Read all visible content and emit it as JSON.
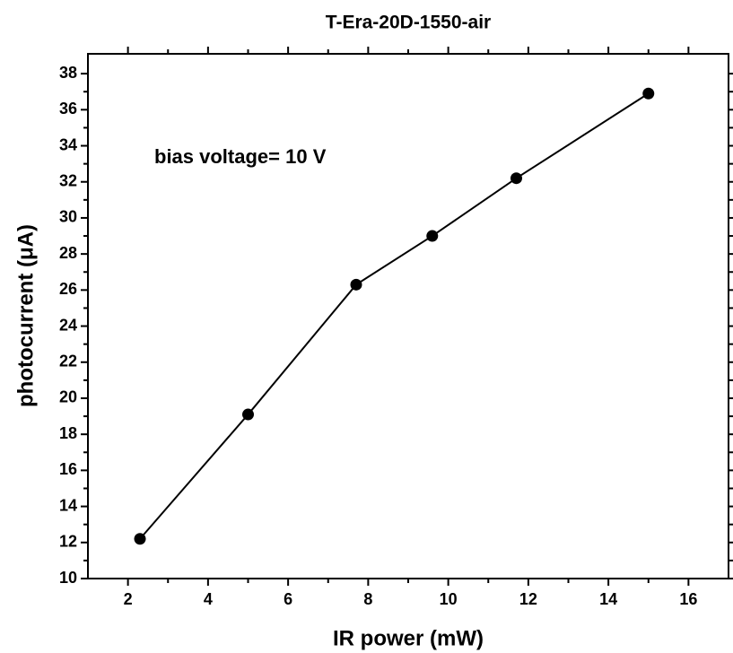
{
  "chart_data": {
    "type": "line",
    "title": "T-Era-20D-1550-air",
    "x_label": "IR power (mW)",
    "y_label": "photocurrent (μA)",
    "annotation": "bias voltage= 10 V",
    "x": [
      2.3,
      5.0,
      7.7,
      9.6,
      11.7,
      15.0
    ],
    "series": [
      {
        "color": "#000000",
        "values": [
          12.2,
          19.1,
          26.3,
          29.0,
          32.2,
          36.9
        ]
      }
    ],
    "xlim": [
      1,
      17
    ],
    "ylim": [
      10,
      39.1
    ],
    "xticks": [
      2,
      4,
      6,
      8,
      10,
      12,
      14,
      16
    ],
    "yticks": [
      10,
      12,
      14,
      16,
      18,
      20,
      22,
      24,
      26,
      28,
      30,
      32,
      34,
      36,
      38
    ],
    "grid": false
  }
}
